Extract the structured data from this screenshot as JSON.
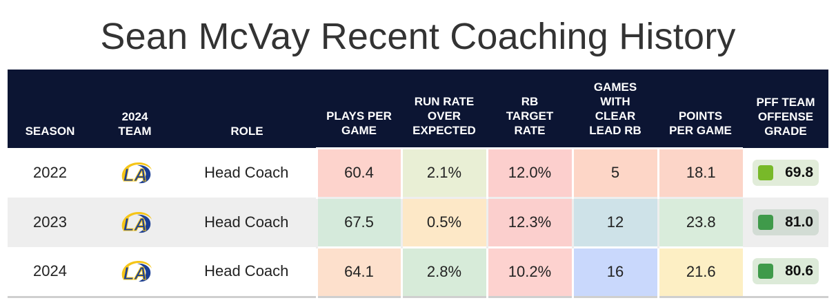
{
  "title": "Sean McVay Recent Coaching History",
  "columns": {
    "season": "SEASON",
    "team": [
      "2024",
      "TEAM"
    ],
    "role": "ROLE",
    "plays": [
      "PLAYS PER",
      "GAME"
    ],
    "roe": [
      "RUN RATE",
      "OVER",
      "EXPECTED"
    ],
    "rbtr": [
      "RB",
      "TARGET",
      "RATE"
    ],
    "lead": [
      "GAMES",
      "WITH",
      "CLEAR",
      "LEAD RB"
    ],
    "ppg": [
      "POINTS",
      "PER GAME"
    ],
    "pff": [
      "PFF TEAM",
      "OFFENSE",
      "GRADE"
    ]
  },
  "team_logo": {
    "text": "LA",
    "primary": "#1c3f93",
    "secondary": "#f5c518",
    "icon": "la-rams-logo-icon"
  },
  "rows": [
    {
      "season": "2022",
      "team": "LA Rams",
      "role": "Head Coach",
      "plays": "60.4",
      "roe": "2.1%",
      "rbtr": "12.0%",
      "lead": "5",
      "ppg": "18.1",
      "pff": "69.8",
      "colors": {
        "plays": "#fdd3cc",
        "roe": "#e9efd5",
        "rbtr": "#fccfcd",
        "lead": "#fdd6c7",
        "ppg": "#fcd5c8",
        "pff_bg": "#e1ecd9",
        "pff_sq": "#78b929"
      }
    },
    {
      "season": "2023",
      "team": "LA Rams",
      "role": "Head Coach",
      "plays": "67.5",
      "roe": "0.5%",
      "rbtr": "12.3%",
      "lead": "12",
      "ppg": "23.8",
      "pff": "81.0",
      "colors": {
        "plays": "#d5eadb",
        "roe": "#fde8c7",
        "rbtr": "#fbcfcd",
        "lead": "#cee2e8",
        "ppg": "#d9ecdb",
        "pff_bg": "#d2dcd4",
        "pff_sq": "#3f9a4a"
      }
    },
    {
      "season": "2024",
      "team": "LA Rams",
      "role": "Head Coach",
      "plays": "64.1",
      "roe": "2.8%",
      "rbtr": "10.2%",
      "lead": "16",
      "ppg": "21.6",
      "pff": "80.6",
      "colors": {
        "plays": "#fde0cc",
        "roe": "#d7ebd9",
        "rbtr": "#fdd2cf",
        "lead": "#c9d8fc",
        "ppg": "#fdefc4",
        "pff_bg": "#dcead8",
        "pff_sq": "#3f9a4a"
      }
    }
  ]
}
